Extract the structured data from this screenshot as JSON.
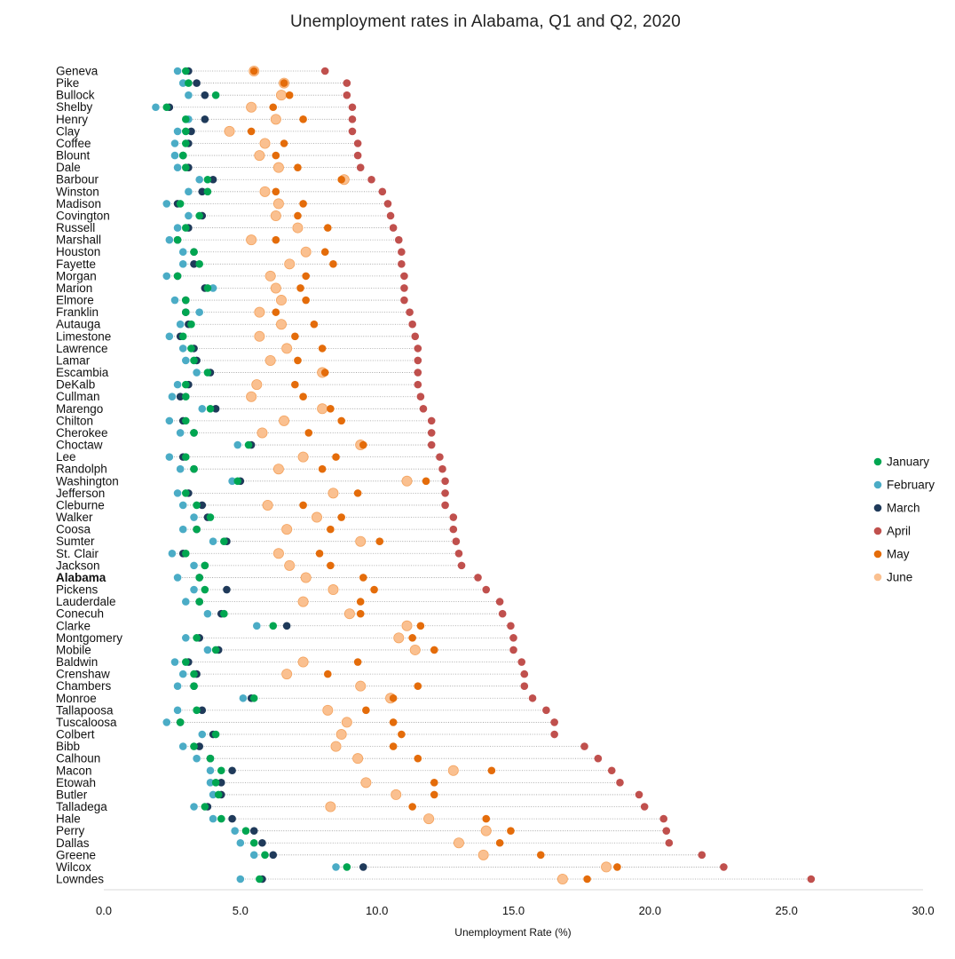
{
  "chart_data": {
    "type": "scatter",
    "title": "Unemployment rates in Alabama, Q1 and Q2, 2020",
    "xlabel": "Unemployment Rate (%)",
    "ylabel": "",
    "xlim": [
      0,
      30
    ],
    "x_ticks": [
      "0.0",
      "5.0",
      "10.0",
      "15.0",
      "20.0",
      "25.0",
      "30.0"
    ],
    "x_tick_values": [
      0,
      5,
      10,
      15,
      20,
      25,
      30
    ],
    "grid": false,
    "legend_position": "right",
    "highlight_category": "Alabama",
    "series": [
      {
        "name": "January",
        "color": "#00a651"
      },
      {
        "name": "February",
        "color": "#4bacc6"
      },
      {
        "name": "March",
        "color": "#1f3a5a"
      },
      {
        "name": "April",
        "color": "#c0504d"
      },
      {
        "name": "May",
        "color": "#e46c0a"
      },
      {
        "name": "June",
        "color": "#fac090"
      }
    ],
    "categories": [
      "Geneva",
      "Pike",
      "Bullock",
      "Shelby",
      "Henry",
      "Clay",
      "Coffee",
      "Blount",
      "Dale",
      "Barbour",
      "Winston",
      "Madison",
      "Covington",
      "Russell",
      "Marshall",
      "Houston",
      "Fayette",
      "Morgan",
      "Marion",
      "Elmore",
      "Franklin",
      "Autauga",
      "Limestone",
      "Lawrence",
      "Lamar",
      "Escambia",
      "DeKalb",
      "Cullman",
      "Marengo",
      "Chilton",
      "Cherokee",
      "Choctaw",
      "Lee",
      "Randolph",
      "Washington",
      "Jefferson",
      "Cleburne",
      "Walker",
      "Coosa",
      "Sumter",
      "St. Clair",
      "Jackson",
      "Alabama",
      "Pickens",
      "Lauderdale",
      "Conecuh",
      "Clarke",
      "Montgomery",
      "Mobile",
      "Baldwin",
      "Crenshaw",
      "Chambers",
      "Monroe",
      "Tallapoosa",
      "Tuscaloosa",
      "Colbert",
      "Bibb",
      "Calhoun",
      "Macon",
      "Etowah",
      "Butler",
      "Talladega",
      "Hale",
      "Perry",
      "Dallas",
      "Greene",
      "Wilcox",
      "Lowndes"
    ],
    "values": [
      [
        3.0,
        2.7,
        3.1,
        8.1,
        5.5,
        5.5
      ],
      [
        3.1,
        2.9,
        3.4,
        8.9,
        6.6,
        6.6
      ],
      [
        4.1,
        3.1,
        3.7,
        8.9,
        6.8,
        6.5
      ],
      [
        2.3,
        1.9,
        2.4,
        9.1,
        6.2,
        5.4
      ],
      [
        3.0,
        3.1,
        3.7,
        9.1,
        7.3,
        6.3
      ],
      [
        3.0,
        2.7,
        3.2,
        9.1,
        5.4,
        4.6
      ],
      [
        3.0,
        2.6,
        3.1,
        9.3,
        6.6,
        5.9
      ],
      [
        2.9,
        2.6,
        2.9,
        9.3,
        6.3,
        5.7
      ],
      [
        3.0,
        2.7,
        3.1,
        9.4,
        7.1,
        6.4
      ],
      [
        3.8,
        3.5,
        4.0,
        9.8,
        8.7,
        8.8
      ],
      [
        3.8,
        3.1,
        3.6,
        10.2,
        6.3,
        5.9
      ],
      [
        2.8,
        2.3,
        2.7,
        10.4,
        7.3,
        6.4
      ],
      [
        3.5,
        3.1,
        3.6,
        10.5,
        7.1,
        6.3
      ],
      [
        3.0,
        2.7,
        3.1,
        10.6,
        8.2,
        7.1
      ],
      [
        2.7,
        2.4,
        2.7,
        10.8,
        6.3,
        5.4
      ],
      [
        3.3,
        2.9,
        3.3,
        10.9,
        8.1,
        7.4
      ],
      [
        3.5,
        2.9,
        3.3,
        10.9,
        8.4,
        6.8
      ],
      [
        2.7,
        2.3,
        2.7,
        11.0,
        7.4,
        6.1
      ],
      [
        3.8,
        4.0,
        3.7,
        11.0,
        7.2,
        6.3
      ],
      [
        3.0,
        2.6,
        3.0,
        11.0,
        7.4,
        6.5
      ],
      [
        3.0,
        3.5,
        3.0,
        11.2,
        6.3,
        5.7
      ],
      [
        3.2,
        2.8,
        3.1,
        11.3,
        7.7,
        6.5
      ],
      [
        2.9,
        2.4,
        2.8,
        11.4,
        7.0,
        5.7
      ],
      [
        3.2,
        2.9,
        3.3,
        11.5,
        8.0,
        6.7
      ],
      [
        3.3,
        3.0,
        3.4,
        11.5,
        7.1,
        6.1
      ],
      [
        3.8,
        3.4,
        3.9,
        11.5,
        8.1,
        8.0
      ],
      [
        3.0,
        2.7,
        3.1,
        11.5,
        7.0,
        5.6
      ],
      [
        3.0,
        2.5,
        2.8,
        11.6,
        7.3,
        5.4
      ],
      [
        3.9,
        3.6,
        4.1,
        11.7,
        8.3,
        8.0
      ],
      [
        3.0,
        2.4,
        2.9,
        12.0,
        8.7,
        6.6
      ],
      [
        3.3,
        2.8,
        3.3,
        12.0,
        7.5,
        5.8
      ],
      [
        5.3,
        4.9,
        5.4,
        12.0,
        9.5,
        9.4
      ],
      [
        3.0,
        2.4,
        2.9,
        12.3,
        8.5,
        7.3
      ],
      [
        3.3,
        2.8,
        3.3,
        12.4,
        8.0,
        6.4
      ],
      [
        4.9,
        4.7,
        5.0,
        12.5,
        11.8,
        11.1
      ],
      [
        3.0,
        2.7,
        3.1,
        12.5,
        9.3,
        8.4
      ],
      [
        3.4,
        2.9,
        3.6,
        12.5,
        7.3,
        6.0
      ],
      [
        3.9,
        3.3,
        3.8,
        12.8,
        8.7,
        7.8
      ],
      [
        3.4,
        2.9,
        3.4,
        12.8,
        8.3,
        6.7
      ],
      [
        4.4,
        4.0,
        4.5,
        12.9,
        10.1,
        9.4
      ],
      [
        3.0,
        2.5,
        2.9,
        13.0,
        7.9,
        6.4
      ],
      [
        3.7,
        3.3,
        3.7,
        13.1,
        8.3,
        6.8
      ],
      [
        3.5,
        2.7,
        3.5,
        13.7,
        9.5,
        7.4
      ],
      [
        3.7,
        3.3,
        4.5,
        14.0,
        9.9,
        8.4
      ],
      [
        3.5,
        3.0,
        3.5,
        14.5,
        9.4,
        7.3
      ],
      [
        4.4,
        3.8,
        4.3,
        14.6,
        9.4,
        9.0
      ],
      [
        6.2,
        5.6,
        6.7,
        14.9,
        11.6,
        11.1
      ],
      [
        3.4,
        3.0,
        3.5,
        15.0,
        11.3,
        10.8
      ],
      [
        4.1,
        3.8,
        4.2,
        15.0,
        12.1,
        11.4
      ],
      [
        3.0,
        2.6,
        3.1,
        15.3,
        9.3,
        7.3
      ],
      [
        3.3,
        2.9,
        3.4,
        15.4,
        8.2,
        6.7
      ],
      [
        3.3,
        2.7,
        3.3,
        15.4,
        11.5,
        9.4
      ],
      [
        5.5,
        5.1,
        5.4,
        15.7,
        10.6,
        10.5
      ],
      [
        3.4,
        2.7,
        3.6,
        16.2,
        9.6,
        8.2
      ],
      [
        2.8,
        2.3,
        2.8,
        16.5,
        10.6,
        8.9
      ],
      [
        4.1,
        3.6,
        4.0,
        16.5,
        10.9,
        8.7
      ],
      [
        3.3,
        2.9,
        3.5,
        17.6,
        10.6,
        8.5
      ],
      [
        3.9,
        3.4,
        3.9,
        18.1,
        11.5,
        9.3
      ],
      [
        4.3,
        3.9,
        4.7,
        18.6,
        14.2,
        12.8
      ],
      [
        4.1,
        3.9,
        4.3,
        18.9,
        12.1,
        9.6
      ],
      [
        4.2,
        4.0,
        4.3,
        19.6,
        12.1,
        10.7
      ],
      [
        3.7,
        3.3,
        3.8,
        19.8,
        11.3,
        8.3
      ],
      [
        4.3,
        4.0,
        4.7,
        20.5,
        14.0,
        11.9
      ],
      [
        5.2,
        4.8,
        5.5,
        20.6,
        14.9,
        14.0
      ],
      [
        5.5,
        5.0,
        5.8,
        20.7,
        14.5,
        13.0
      ],
      [
        5.9,
        5.5,
        6.2,
        21.9,
        16.0,
        13.9
      ],
      [
        8.9,
        8.5,
        9.5,
        22.7,
        18.8,
        18.4
      ],
      [
        5.7,
        5.0,
        5.8,
        25.9,
        17.7,
        16.8
      ]
    ]
  }
}
